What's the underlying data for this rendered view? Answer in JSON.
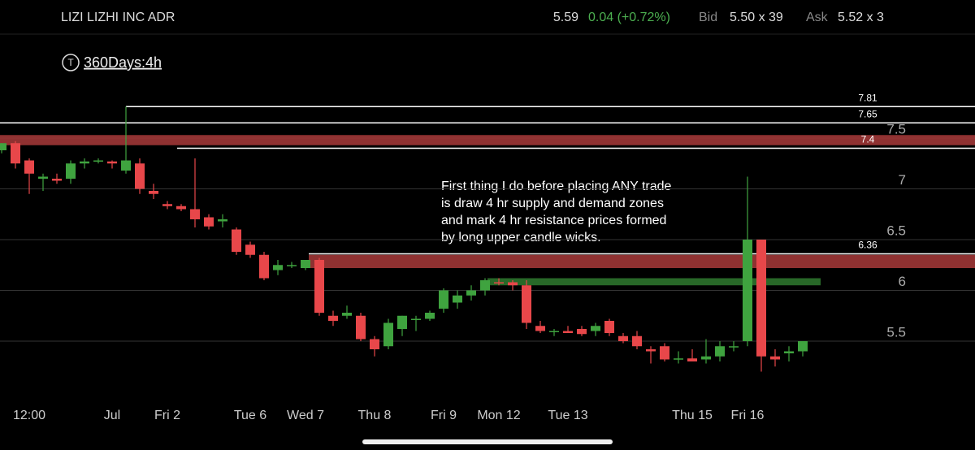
{
  "header": {
    "symbol": "LIZI LIZHI INC ADR",
    "last": "5.59",
    "change": "0.04 (+0.72%)",
    "bid_label": "Bid",
    "bid": "5.50 x 39",
    "ask_label": "Ask",
    "ask": "5.52 x 3"
  },
  "timeframe_icon": "T",
  "timeframe": "360Days:4h",
  "annotation": [
    "First thing I do before placing ANY trade",
    "is draw 4 hr supply and demand zones",
    "and mark 4 hr resistance prices formed",
    "by long upper candle wicks."
  ],
  "chart_data": {
    "type": "candlestick",
    "categories": [
      null,
      null,
      "12:00",
      null,
      null,
      null,
      null,
      null,
      "Jul",
      null,
      null,
      null,
      "Fri 2",
      null,
      null,
      null,
      null,
      null,
      "Tue 6",
      null,
      null,
      null,
      "Wed 7",
      null,
      null,
      null,
      null,
      "Thu 8",
      null,
      null,
      null,
      null,
      "Fri 9",
      null,
      null,
      null,
      "Mon 12",
      null,
      null,
      null,
      null,
      "Tue 13",
      null,
      null,
      null,
      null,
      null,
      null,
      null,
      null,
      "Thu 15",
      null,
      null,
      null,
      "Fri 16",
      null,
      null,
      null,
      null
    ],
    "candles": [
      {
        "o": 7.38,
        "h": 7.45,
        "l": 7.35,
        "c": 7.45
      },
      {
        "o": 7.45,
        "h": 7.47,
        "l": 7.2,
        "c": 7.25
      },
      {
        "o": 7.28,
        "h": 7.3,
        "l": 6.95,
        "c": 7.15
      },
      {
        "o": 7.1,
        "h": 7.15,
        "l": 6.98,
        "c": 7.12
      },
      {
        "o": 7.1,
        "h": 7.15,
        "l": 7.05,
        "c": 7.08
      },
      {
        "o": 7.1,
        "h": 7.28,
        "l": 7.05,
        "c": 7.25
      },
      {
        "o": 7.25,
        "h": 7.3,
        "l": 7.2,
        "c": 7.27
      },
      {
        "o": 7.28,
        "h": 7.3,
        "l": 7.25,
        "c": 7.28
      },
      {
        "o": 7.27,
        "h": 7.28,
        "l": 7.2,
        "c": 7.25
      },
      {
        "o": 7.18,
        "h": 7.81,
        "l": 7.15,
        "c": 7.28
      },
      {
        "o": 7.25,
        "h": 7.3,
        "l": 6.95,
        "c": 7.0
      },
      {
        "o": 6.98,
        "h": 7.05,
        "l": 6.9,
        "c": 6.95
      },
      {
        "o": 6.85,
        "h": 6.88,
        "l": 6.8,
        "c": 6.83
      },
      {
        "o": 6.83,
        "h": 6.85,
        "l": 6.78,
        "c": 6.8
      },
      {
        "o": 6.8,
        "h": 7.3,
        "l": 6.62,
        "c": 6.7
      },
      {
        "o": 6.72,
        "h": 6.75,
        "l": 6.6,
        "c": 6.63
      },
      {
        "o": 6.68,
        "h": 6.75,
        "l": 6.62,
        "c": 6.7
      },
      {
        "o": 6.6,
        "h": 6.62,
        "l": 6.35,
        "c": 6.38
      },
      {
        "o": 6.45,
        "h": 6.48,
        "l": 6.32,
        "c": 6.35
      },
      {
        "o": 6.35,
        "h": 6.38,
        "l": 6.1,
        "c": 6.12
      },
      {
        "o": 6.2,
        "h": 6.3,
        "l": 6.15,
        "c": 6.25
      },
      {
        "o": 6.25,
        "h": 6.28,
        "l": 6.22,
        "c": 6.25
      },
      {
        "o": 6.22,
        "h": 6.3,
        "l": 6.2,
        "c": 6.3
      },
      {
        "o": 6.3,
        "h": 6.32,
        "l": 5.75,
        "c": 5.78
      },
      {
        "o": 5.75,
        "h": 5.8,
        "l": 5.65,
        "c": 5.7
      },
      {
        "o": 5.75,
        "h": 5.85,
        "l": 5.72,
        "c": 5.78
      },
      {
        "o": 5.75,
        "h": 5.78,
        "l": 5.5,
        "c": 5.52
      },
      {
        "o": 5.52,
        "h": 5.55,
        "l": 5.35,
        "c": 5.42
      },
      {
        "o": 5.45,
        "h": 5.72,
        "l": 5.42,
        "c": 5.68
      },
      {
        "o": 5.62,
        "h": 5.75,
        "l": 5.55,
        "c": 5.75
      },
      {
        "o": 5.72,
        "h": 5.75,
        "l": 5.6,
        "c": 5.72
      },
      {
        "o": 5.72,
        "h": 5.8,
        "l": 5.7,
        "c": 5.78
      },
      {
        "o": 5.82,
        "h": 6.02,
        "l": 5.78,
        "c": 6.0
      },
      {
        "o": 5.88,
        "h": 6.0,
        "l": 5.82,
        "c": 5.95
      },
      {
        "o": 5.95,
        "h": 6.05,
        "l": 5.9,
        "c": 6.0
      },
      {
        "o": 6.0,
        "h": 6.12,
        "l": 5.95,
        "c": 6.1
      },
      {
        "o": 6.08,
        "h": 6.12,
        "l": 6.05,
        "c": 6.07
      },
      {
        "o": 6.08,
        "h": 6.1,
        "l": 6.0,
        "c": 6.05
      },
      {
        "o": 6.05,
        "h": 6.1,
        "l": 5.62,
        "c": 5.68
      },
      {
        "o": 5.65,
        "h": 5.7,
        "l": 5.58,
        "c": 5.6
      },
      {
        "o": 5.6,
        "h": 5.62,
        "l": 5.55,
        "c": 5.6
      },
      {
        "o": 5.6,
        "h": 5.65,
        "l": 5.58,
        "c": 5.58
      },
      {
        "o": 5.62,
        "h": 5.65,
        "l": 5.55,
        "c": 5.57
      },
      {
        "o": 5.6,
        "h": 5.68,
        "l": 5.55,
        "c": 5.65
      },
      {
        "o": 5.7,
        "h": 5.72,
        "l": 5.55,
        "c": 5.58
      },
      {
        "o": 5.55,
        "h": 5.58,
        "l": 5.48,
        "c": 5.5
      },
      {
        "o": 5.55,
        "h": 5.6,
        "l": 5.42,
        "c": 5.45
      },
      {
        "o": 5.42,
        "h": 5.45,
        "l": 5.28,
        "c": 5.4
      },
      {
        "o": 5.45,
        "h": 5.48,
        "l": 5.3,
        "c": 5.32
      },
      {
        "o": 5.32,
        "h": 5.4,
        "l": 5.28,
        "c": 5.33
      },
      {
        "o": 5.33,
        "h": 5.42,
        "l": 5.3,
        "c": 5.3
      },
      {
        "o": 5.32,
        "h": 5.52,
        "l": 5.28,
        "c": 5.35
      },
      {
        "o": 5.35,
        "h": 5.5,
        "l": 5.3,
        "c": 5.45
      },
      {
        "o": 5.45,
        "h": 5.5,
        "l": 5.4,
        "c": 5.45
      },
      {
        "o": 5.5,
        "h": 7.12,
        "l": 5.45,
        "c": 6.5
      },
      {
        "o": 6.5,
        "h": 6.5,
        "l": 5.2,
        "c": 5.35
      },
      {
        "o": 5.35,
        "h": 5.42,
        "l": 5.25,
        "c": 5.32
      },
      {
        "o": 5.38,
        "h": 5.45,
        "l": 5.3,
        "c": 5.4
      },
      {
        "o": 5.4,
        "h": 5.5,
        "l": 5.35,
        "c": 5.5
      }
    ],
    "up_color": "#3fa33f",
    "down_color": "#e8474a",
    "ylim": [
      4.86,
      8.06
    ],
    "yticks": [
      5.5,
      6,
      6.5,
      7,
      7.5
    ],
    "grid": true,
    "levels": [
      {
        "value": 7.81,
        "label": "7.81"
      },
      {
        "value": 7.65,
        "label": "7.65"
      },
      {
        "value": 7.4,
        "label": "7.4"
      },
      {
        "value": 6.36,
        "label": "6.36"
      }
    ],
    "zones": [
      {
        "low": 7.43,
        "high": 7.53,
        "color": "#a83a3a"
      },
      {
        "low": 6.22,
        "high": 6.35,
        "color": "#a83a3a"
      },
      {
        "low": 6.05,
        "high": 6.12,
        "color": "#2f7a2f"
      }
    ]
  }
}
